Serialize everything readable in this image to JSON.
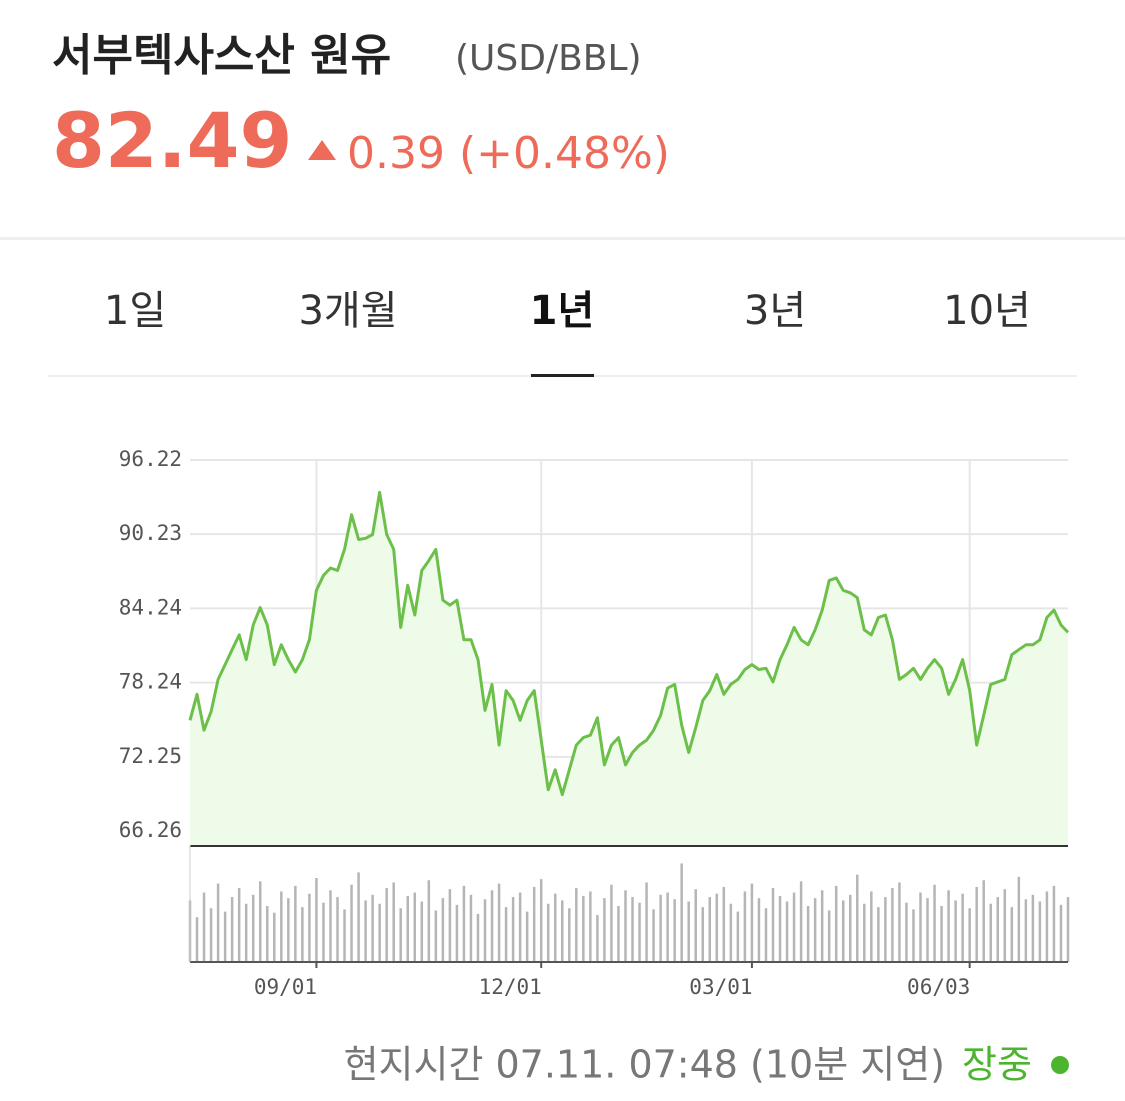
{
  "header": {
    "title": "서부텍사스산 원유",
    "unit": "(USD/BBL)",
    "price": "82.49",
    "change": "0.39",
    "change_percent": "(+0.48%)"
  },
  "tabs": {
    "items": [
      "1일",
      "3개월",
      "1년",
      "3년",
      "10년"
    ],
    "active": 2
  },
  "chart_data": {
    "type": "line",
    "categories": [
      null,
      null,
      null,
      null,
      null,
      null,
      null,
      null,
      null,
      null,
      null,
      null,
      null,
      null,
      null,
      null,
      null,
      null,
      "09/01",
      null,
      null,
      null,
      null,
      null,
      null,
      null,
      null,
      null,
      null,
      null,
      null,
      null,
      null,
      null,
      null,
      null,
      null,
      null,
      null,
      null,
      null,
      null,
      null,
      null,
      null,
      null,
      null,
      null,
      null,
      null,
      "12/01",
      null,
      null,
      null,
      null,
      null,
      null,
      null,
      null,
      null,
      null,
      null,
      null,
      null,
      null,
      null,
      null,
      null,
      null,
      null,
      null,
      null,
      null,
      null,
      null,
      null,
      null,
      null,
      null,
      null,
      "03/01",
      null,
      null,
      null,
      null,
      null,
      null,
      null,
      null,
      null,
      null,
      null,
      null,
      null,
      null,
      null,
      null,
      null,
      null,
      null,
      null,
      null,
      null,
      null,
      null,
      null,
      null,
      null,
      null,
      null,
      null,
      "06/03",
      null,
      null,
      null,
      null,
      null,
      null,
      null,
      null,
      null,
      null,
      null,
      null,
      null,
      null
    ],
    "series": [
      {
        "name": "price",
        "color": "#6cc04a",
        "fill": "#eefbe9",
        "values": [
          75.2,
          77.3,
          74.4,
          75.9,
          78.5,
          79.7,
          80.9,
          82.1,
          80.1,
          82.9,
          84.3,
          82.9,
          79.7,
          81.3,
          80.1,
          79.1,
          80.1,
          81.7,
          85.7,
          86.9,
          87.5,
          87.3,
          89.0,
          91.8,
          89.8,
          89.9,
          90.2,
          93.6,
          90.2,
          89.0,
          82.7,
          86.1,
          83.7,
          87.3,
          88.1,
          89.0,
          84.9,
          84.5,
          84.9,
          81.7,
          81.7,
          80.1,
          76.0,
          78.1,
          73.2,
          77.6,
          76.8,
          75.2,
          76.8,
          77.6,
          73.6,
          69.6,
          71.2,
          69.2,
          71.2,
          73.2,
          73.8,
          74.0,
          75.4,
          71.6,
          73.2,
          73.8,
          71.6,
          72.6,
          73.2,
          73.6,
          74.4,
          75.6,
          77.8,
          78.1,
          74.8,
          72.6,
          74.6,
          76.8,
          77.6,
          78.9,
          77.3,
          78.1,
          78.5,
          79.3,
          79.7,
          79.3,
          79.4,
          78.3,
          80.1,
          81.3,
          82.7,
          81.7,
          81.3,
          82.5,
          84.1,
          86.5,
          86.7,
          85.7,
          85.5,
          85.1,
          82.5,
          82.1,
          83.5,
          83.7,
          81.7,
          78.5,
          78.9,
          79.4,
          78.5,
          79.4,
          80.1,
          79.4,
          77.3,
          78.5,
          80.1,
          77.6,
          73.2,
          75.6,
          78.1,
          78.3,
          78.5,
          80.5,
          80.9,
          81.3,
          81.3,
          81.7,
          83.5,
          84.1,
          82.9,
          82.3
        ]
      },
      {
        "name": "volume",
        "type": "bar",
        "axis": "y2",
        "color": "#b5b5b5",
        "values": [
          55,
          40,
          62,
          48,
          70,
          45,
          58,
          66,
          52,
          60,
          72,
          50,
          44,
          63,
          57,
          68,
          49,
          61,
          75,
          53,
          64,
          58,
          47,
          69,
          80,
          55,
          60,
          52,
          66,
          71,
          48,
          59,
          62,
          54,
          73,
          46,
          57,
          65,
          51,
          68,
          60,
          43,
          56,
          64,
          70,
          49,
          58,
          62,
          45,
          67,
          74,
          52,
          61,
          55,
          48,
          66,
          59,
          63,
          42,
          57,
          69,
          50,
          64,
          58,
          53,
          71,
          47,
          60,
          62,
          56,
          88,
          54,
          65,
          49,
          58,
          61,
          67,
          52,
          45,
          63,
          70,
          57,
          48,
          66,
          59,
          54,
          62,
          72,
          50,
          57,
          64,
          46,
          68,
          55,
          60,
          78,
          52,
          63,
          49,
          58,
          66,
          71,
          53,
          47,
          62,
          57,
          69,
          50,
          64,
          55,
          61,
          48,
          67,
          73,
          52,
          58,
          65,
          49,
          76,
          56,
          60,
          54,
          63,
          68,
          51,
          58
        ]
      }
    ],
    "ylim": [
      65.05,
      96.22
    ],
    "yticks": [
      66.26,
      72.25,
      78.24,
      84.24,
      90.23,
      96.22
    ],
    "y2lim": [
      0,
      100
    ],
    "grid": true
  },
  "footer": {
    "time": "현지시간 07.11. 07:48 (10분 지연)",
    "status": "장중"
  }
}
